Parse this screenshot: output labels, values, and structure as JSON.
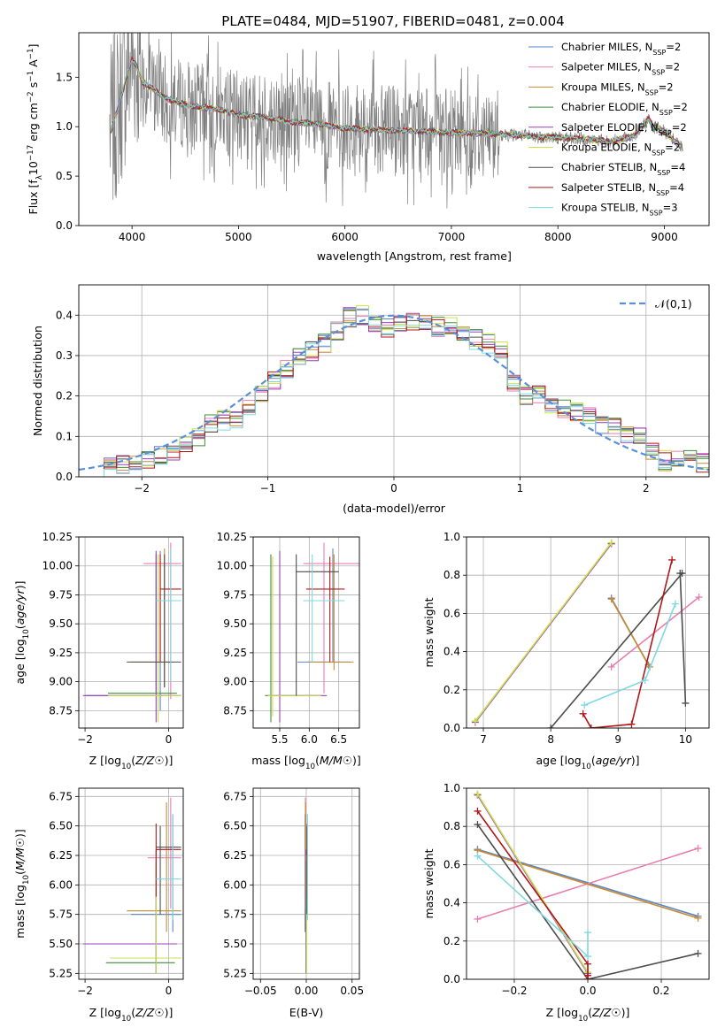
{
  "chart_data": [
    {
      "id": "spectrum",
      "type": "line",
      "title": "PLATE=0484, MJD=51907, FIBERID=0481, z=0.004",
      "xlabel": "wavelength [Angstrom, rest frame]",
      "ylabel": "Flux [f_λ 10^-17 erg cm^-2 s^-1 A^-1]",
      "xlim": [
        3500,
        9420
      ],
      "ylim": [
        0,
        1.95
      ],
      "xticks": [
        4000,
        5000,
        6000,
        7000,
        8000,
        9000
      ],
      "yticks": [
        0.0,
        0.5,
        1.0,
        1.5
      ],
      "grid": false,
      "legend_position": "top-right",
      "observed_color": "#7f7f7f",
      "continuum_nodes": {
        "x": [
          3800,
          3900,
          3960,
          4000,
          4050,
          4100,
          4200,
          4300,
          4400,
          4600,
          4800,
          5000,
          5200,
          5500,
          5800,
          6000,
          6300,
          6600,
          7000,
          7400,
          7800,
          8200,
          8500,
          8700,
          8800,
          8850,
          8900,
          9000,
          9100,
          9150
        ],
        "y": [
          0.95,
          1.3,
          1.55,
          1.68,
          1.6,
          1.45,
          1.38,
          1.3,
          1.25,
          1.2,
          1.18,
          1.12,
          1.1,
          1.05,
          1.02,
          0.98,
          0.97,
          0.96,
          0.94,
          0.93,
          0.9,
          0.88,
          0.85,
          0.9,
          1.0,
          1.08,
          1.0,
          0.95,
          0.85,
          0.8
        ]
      },
      "series": [
        {
          "name": "Chabrier MILES, N_SSP=2",
          "color": "#5a84c8"
        },
        {
          "name": "Salpeter MILES, N_SSP=2",
          "color": "#e87fb0"
        },
        {
          "name": "Kroupa MILES, N_SSP=2",
          "color": "#c88a2e"
        },
        {
          "name": "Chabrier ELODIE, N_SSP=2",
          "color": "#3f8f3f"
        },
        {
          "name": "Salpeter ELODIE, N_SSP=2",
          "color": "#9b3fbf"
        },
        {
          "name": "Kroupa ELODIE, N_SSP=2",
          "color": "#cde04a"
        },
        {
          "name": "Chabrier STELIB, N_SSP=4",
          "color": "#4d4d4d"
        },
        {
          "name": "Salpeter STELIB, N_SSP=4",
          "color": "#b01818"
        },
        {
          "name": "Kroupa STELIB, N_SSP=3",
          "color": "#7fd9e0"
        }
      ]
    },
    {
      "id": "residuals",
      "type": "line",
      "xlabel": "(data-model)/error",
      "ylabel": "Normed distribution",
      "xlim": [
        -2.5,
        2.5
      ],
      "ylim": [
        0,
        0.475
      ],
      "xticks": [
        -2,
        -1,
        0,
        1,
        2
      ],
      "yticks": [
        0.0,
        0.1,
        0.2,
        0.3,
        0.4
      ],
      "grid": true,
      "legend_position": "top-right",
      "reference": {
        "name": "𝒩(0,1)",
        "color": "#5b8fd9"
      },
      "bin_edges": [
        -2.3,
        -2.2,
        -2.1,
        -2.0,
        -1.9,
        -1.8,
        -1.7,
        -1.6,
        -1.5,
        -1.4,
        -1.3,
        -1.2,
        -1.1,
        -1.0,
        -0.9,
        -0.8,
        -0.7,
        -0.6,
        -0.5,
        -0.4,
        -0.3,
        -0.2,
        -0.1,
        0.0,
        0.1,
        0.2,
        0.3,
        0.4,
        0.5,
        0.6,
        0.7,
        0.8,
        0.9,
        1.0,
        1.1,
        1.2,
        1.3,
        1.4,
        1.5,
        1.6,
        1.7,
        1.8,
        1.9,
        2.0,
        2.1,
        2.2,
        2.3,
        2.4,
        2.5
      ],
      "histogram_base": [
        0.025,
        0.03,
        0.035,
        0.045,
        0.055,
        0.065,
        0.08,
        0.1,
        0.13,
        0.14,
        0.145,
        0.175,
        0.2,
        0.24,
        0.27,
        0.3,
        0.31,
        0.33,
        0.36,
        0.395,
        0.4,
        0.38,
        0.37,
        0.375,
        0.385,
        0.38,
        0.37,
        0.37,
        0.35,
        0.34,
        0.33,
        0.31,
        0.235,
        0.2,
        0.2,
        0.18,
        0.17,
        0.16,
        0.15,
        0.13,
        0.12,
        0.1,
        0.1,
        0.06,
        0.04,
        0.04,
        0.045,
        0.035
      ]
    },
    {
      "id": "age-vs-Z",
      "type": "scatter",
      "xlabel": "Z [log10(Z/Z☉)]",
      "ylabel": "age  [log10(age/yr)]",
      "xlim": [
        -2.15,
        0.35
      ],
      "ylim": [
        8.6,
        10.25
      ],
      "xticks": [
        -2,
        0
      ],
      "yticks": [
        8.75,
        9.0,
        9.25,
        9.5,
        9.75,
        10.0,
        10.25
      ],
      "grid": true
    },
    {
      "id": "age-vs-mass",
      "type": "scatter",
      "xlabel": "mass [log10(M/M☉)]",
      "xlim": [
        5.05,
        6.85
      ],
      "ylim": [
        8.6,
        10.25
      ],
      "xticks": [
        5.5,
        6.0,
        6.5
      ],
      "yticks": [
        8.75,
        9.0,
        9.25,
        9.5,
        9.75,
        10.0,
        10.25
      ],
      "grid": true
    },
    {
      "id": "weight-vs-age",
      "type": "line",
      "xlabel": "age  [log10(age/yr)]",
      "ylabel": "mass weight",
      "xlim": [
        6.75,
        10.35
      ],
      "ylim": [
        0,
        1.0
      ],
      "xticks": [
        7,
        8,
        9,
        10
      ],
      "yticks": [
        0.0,
        0.2,
        0.4,
        0.6,
        0.8,
        1.0
      ],
      "grid": true,
      "series": [
        {
          "name": "Chabrier MILES, N_SSP=2",
          "color": "#5a84c8",
          "x": [
            8.9,
            9.45
          ],
          "y": [
            0.68,
            0.33
          ]
        },
        {
          "name": "Salpeter MILES, N_SSP=2",
          "color": "#e87fb0",
          "x": [
            8.9,
            10.2
          ],
          "y": [
            0.32,
            0.685
          ]
        },
        {
          "name": "Kroupa MILES, N_SSP=2",
          "color": "#c88a2e",
          "x": [
            8.9,
            9.47
          ],
          "y": [
            0.675,
            0.32
          ]
        },
        {
          "name": "Chabrier ELODIE, N_SSP=2",
          "color": "#3f8f3f",
          "x": [
            6.88,
            8.9
          ],
          "y": [
            0.035,
            0.965
          ]
        },
        {
          "name": "Salpeter ELODIE, N_SSP=2",
          "color": "#9b3fbf",
          "x": [
            6.88,
            8.9
          ],
          "y": [
            0.03,
            0.965
          ]
        },
        {
          "name": "Kroupa ELODIE, N_SSP=2",
          "color": "#cde04a",
          "x": [
            6.88,
            8.9
          ],
          "y": [
            0.035,
            0.97
          ]
        },
        {
          "name": "Chabrier STELIB, N_SSP=4",
          "color": "#4d4d4d",
          "x": [
            8.0,
            9.95,
            9.92,
            10.0
          ],
          "y": [
            0.0,
            0.81,
            0.81,
            0.13
          ]
        },
        {
          "name": "Salpeter STELIB, N_SSP=4",
          "color": "#b01818",
          "x": [
            8.48,
            8.6,
            9.2,
            9.8
          ],
          "y": [
            0.075,
            0.0,
            0.02,
            0.88
          ]
        },
        {
          "name": "Kroupa STELIB, N_SSP=3",
          "color": "#7fd9e0",
          "x": [
            8.5,
            9.4,
            9.85
          ],
          "y": [
            0.12,
            0.25,
            0.65
          ]
        }
      ]
    },
    {
      "id": "mass-vs-Z",
      "type": "scatter",
      "xlabel": "Z [log10(Z/Z☉)]",
      "ylabel": "mass [log10(M/M☉)]",
      "xlim": [
        -2.15,
        0.35
      ],
      "ylim": [
        5.2,
        6.82
      ],
      "xticks": [
        -2,
        0
      ],
      "yticks": [
        5.25,
        5.5,
        5.75,
        6.0,
        6.25,
        6.5,
        6.75
      ],
      "grid": true
    },
    {
      "id": "mass-vs-EBV",
      "type": "scatter",
      "xlabel": "E(B-V)",
      "xlim": [
        -0.058,
        0.058
      ],
      "ylim": [
        5.2,
        6.82
      ],
      "xticks": [
        -0.05,
        0.0,
        0.05
      ],
      "yticks": [
        5.25,
        5.5,
        5.75,
        6.0,
        6.25,
        6.5,
        6.75
      ],
      "grid": true
    },
    {
      "id": "weight-vs-Z",
      "type": "line",
      "xlabel": "Z [log10(Z/Z☉)]",
      "ylabel": "mass weight",
      "xlim": [
        -0.33,
        0.33
      ],
      "ylim": [
        0,
        1.0
      ],
      "xticks": [
        -0.2,
        0.0,
        0.2
      ],
      "yticks": [
        0.0,
        0.2,
        0.4,
        0.6,
        0.8,
        1.0
      ],
      "grid": true,
      "series": [
        {
          "name": "Chabrier MILES, N_SSP=2",
          "color": "#5a84c8",
          "x": [
            -0.3,
            0.3
          ],
          "y": [
            0.68,
            0.33
          ]
        },
        {
          "name": "Salpeter MILES, N_SSP=2",
          "color": "#e87fb0",
          "x": [
            -0.3,
            0.3
          ],
          "y": [
            0.315,
            0.685
          ]
        },
        {
          "name": "Kroupa MILES, N_SSP=2",
          "color": "#c88a2e",
          "x": [
            -0.3,
            0.3
          ],
          "y": [
            0.675,
            0.32
          ]
        },
        {
          "name": "Chabrier ELODIE, N_SSP=2",
          "color": "#3f8f3f",
          "x": [
            -0.3,
            0.0
          ],
          "y": [
            0.965,
            0.035
          ]
        },
        {
          "name": "Salpeter ELODIE, N_SSP=2",
          "color": "#9b3fbf",
          "x": [
            -0.3,
            0.0
          ],
          "y": [
            0.965,
            0.03
          ]
        },
        {
          "name": "Kroupa ELODIE, N_SSP=2",
          "color": "#cde04a",
          "x": [
            -0.3,
            0.0
          ],
          "y": [
            0.97,
            0.035
          ]
        },
        {
          "name": "Chabrier STELIB, N_SSP=4",
          "color": "#4d4d4d",
          "x": [
            -0.3,
            0.0,
            0.3
          ],
          "y": [
            0.81,
            0.0,
            0.135
          ]
        },
        {
          "name": "Salpeter STELIB, N_SSP=4",
          "color": "#b01818",
          "x": [
            -0.3,
            0.0,
            0.0,
            0.0
          ],
          "y": [
            0.88,
            0.08,
            0.02,
            0.0
          ]
        },
        {
          "name": "Kroupa STELIB, N_SSP=3",
          "color": "#7fd9e0",
          "x": [
            -0.3,
            0.0,
            0.0
          ],
          "y": [
            0.645,
            0.12,
            0.245
          ]
        }
      ]
    }
  ]
}
